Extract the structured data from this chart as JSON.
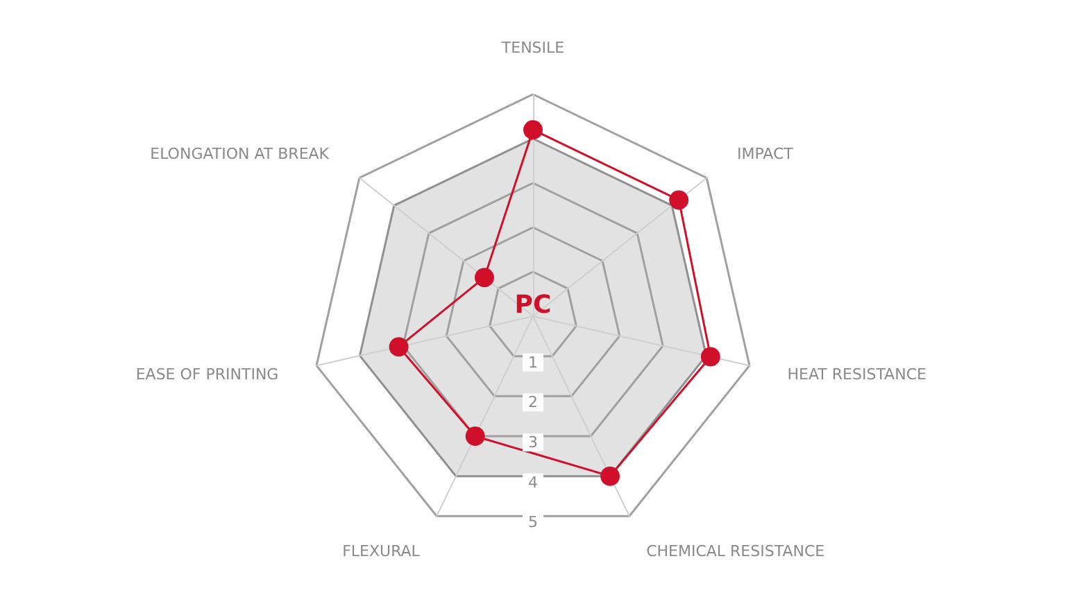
{
  "chart_data": {
    "type": "radar",
    "categories": [
      "TENSILE",
      "IMPACT",
      "HEAT RESISTANCE",
      "CHEMICAL RESISTANCE",
      "FLEXURAL",
      "EASE OF PRINTING",
      "ELONGATION AT BREAK"
    ],
    "series": [
      {
        "name": "PC",
        "color": "#d0102a",
        "values": [
          4.2,
          4.2,
          4.1,
          4.0,
          3.0,
          3.1,
          1.4
        ]
      }
    ],
    "ylim": [
      0,
      5
    ],
    "yticks": [
      1,
      2,
      3,
      4,
      5
    ],
    "grid": true,
    "marker": "circle"
  }
}
